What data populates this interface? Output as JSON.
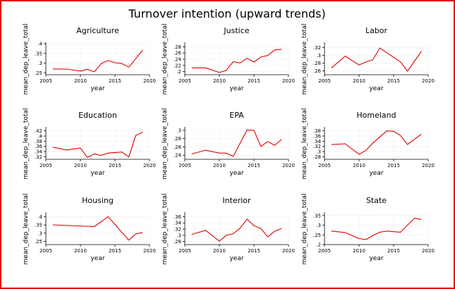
{
  "figure": {
    "title": "Turnover intention (upward trends)",
    "line_color": "#e00000",
    "frame_color": "#e00000"
  },
  "chart_data": [
    {
      "type": "line",
      "title": "Agriculture",
      "xlabel": "year",
      "ylabel": "mean_dep_leave_total",
      "xlim": [
        2005,
        2020
      ],
      "xticks": [
        2005,
        2010,
        2015,
        2020
      ],
      "ylim": [
        0.24,
        0.4
      ],
      "yticks": [
        0.25,
        0.3,
        0.35,
        0.4
      ],
      "ytick_labels": [
        ".25",
        ".3",
        ".35",
        ".4"
      ],
      "x": [
        2006,
        2008,
        2010,
        2011,
        2012,
        2013,
        2014,
        2015,
        2016,
        2017,
        2019
      ],
      "values": [
        0.27,
        0.269,
        0.259,
        0.268,
        0.255,
        0.297,
        0.313,
        0.302,
        0.298,
        0.279,
        0.367
      ]
    },
    {
      "type": "line",
      "title": "Justice",
      "xlabel": "year",
      "ylabel": "mean_dep_leave_total",
      "xlim": [
        2005,
        2020
      ],
      "xticks": [
        2005,
        2010,
        2015,
        2020
      ],
      "ylim": [
        0.19,
        0.29
      ],
      "yticks": [
        0.2,
        0.22,
        0.24,
        0.26,
        0.28
      ],
      "ytick_labels": [
        ".2",
        ".22",
        ".24",
        ".26",
        ".28"
      ],
      "x": [
        2006,
        2008,
        2010,
        2011,
        2012,
        2013,
        2014,
        2015,
        2016,
        2017,
        2018,
        2019
      ],
      "values": [
        0.212,
        0.212,
        0.197,
        0.204,
        0.232,
        0.228,
        0.243,
        0.231,
        0.247,
        0.252,
        0.27,
        0.272
      ]
    },
    {
      "type": "line",
      "title": "Labor",
      "xlabel": "year",
      "ylabel": "mean_dep_leave_total",
      "xlim": [
        2005,
        2020
      ],
      "xticks": [
        2005,
        2010,
        2015,
        2020
      ],
      "ylim": [
        0.25,
        0.33
      ],
      "yticks": [
        0.26,
        0.28,
        0.3,
        0.32
      ],
      "ytick_labels": [
        ".26",
        ".28",
        ".3",
        ".32"
      ],
      "x": [
        2006,
        2008,
        2010,
        2011,
        2012,
        2013,
        2016,
        2017,
        2019
      ],
      "values": [
        0.267,
        0.298,
        0.275,
        0.283,
        0.289,
        0.319,
        0.283,
        0.259,
        0.31
      ]
    },
    {
      "type": "line",
      "title": "Education",
      "xlabel": "year",
      "ylabel": "mean_dep_leave_total",
      "xlim": [
        2005,
        2020
      ],
      "xticks": [
        2005,
        2010,
        2015,
        2020
      ],
      "ylim": [
        0.31,
        0.43
      ],
      "yticks": [
        0.32,
        0.34,
        0.36,
        0.38,
        0.4,
        0.42
      ],
      "ytick_labels": [
        ".32",
        ".34",
        ".36",
        ".38",
        ".4",
        ".42"
      ],
      "x": [
        2006,
        2008,
        2010,
        2011,
        2012,
        2013,
        2014,
        2016,
        2017,
        2018,
        2019
      ],
      "values": [
        0.357,
        0.346,
        0.354,
        0.317,
        0.331,
        0.325,
        0.334,
        0.338,
        0.319,
        0.402,
        0.415
      ]
    },
    {
      "type": "line",
      "title": "EPA",
      "xlabel": "year",
      "ylabel": "mean_dep_leave_total",
      "xlim": [
        2005,
        2020
      ],
      "xticks": [
        2005,
        2010,
        2015,
        2020
      ],
      "ylim": [
        0.23,
        0.305
      ],
      "yticks": [
        0.24,
        0.26,
        0.28,
        0.3
      ],
      "ytick_labels": [
        ".24",
        ".26",
        ".28",
        ".3"
      ],
      "x": [
        2006,
        2008,
        2010,
        2011,
        2012,
        2014,
        2015,
        2016,
        2017,
        2018,
        2019
      ],
      "values": [
        0.243,
        0.252,
        0.245,
        0.245,
        0.237,
        0.301,
        0.3,
        0.261,
        0.273,
        0.264,
        0.278
      ]
    },
    {
      "type": "line",
      "title": "Homeland",
      "xlabel": "year",
      "ylabel": "mean_dep_leave_total",
      "xlim": [
        2005,
        2020
      ],
      "xticks": [
        2005,
        2010,
        2015,
        2020
      ],
      "ylim": [
        0.27,
        0.39
      ],
      "yticks": [
        0.28,
        0.3,
        0.32,
        0.34,
        0.36,
        0.38
      ],
      "ytick_labels": [
        ".28",
        ".3",
        ".32",
        ".34",
        ".36",
        ".38"
      ],
      "x": [
        2006,
        2008,
        2010,
        2011,
        2012,
        2014,
        2015,
        2016,
        2017,
        2019
      ],
      "values": [
        0.327,
        0.33,
        0.289,
        0.305,
        0.333,
        0.38,
        0.378,
        0.362,
        0.327,
        0.367
      ]
    },
    {
      "type": "line",
      "title": "Housing",
      "xlabel": "year",
      "ylabel": "mean_dep_leave_total",
      "xlim": [
        2005,
        2020
      ],
      "xticks": [
        2005,
        2010,
        2015,
        2020
      ],
      "ylim": [
        0.23,
        0.42
      ],
      "yticks": [
        0.25,
        0.3,
        0.35,
        0.4
      ],
      "ytick_labels": [
        ".25",
        ".3",
        ".35",
        ".4"
      ],
      "x": [
        2006,
        2012,
        2014,
        2017,
        2018,
        2019
      ],
      "values": [
        0.351,
        0.34,
        0.401,
        0.257,
        0.295,
        0.304
      ]
    },
    {
      "type": "line",
      "title": "Interior",
      "xlabel": "year",
      "ylabel": "mean_dep_leave_total",
      "xlim": [
        2005,
        2020
      ],
      "xticks": [
        2005,
        2010,
        2015,
        2020
      ],
      "ylim": [
        0.27,
        0.37
      ],
      "yticks": [
        0.28,
        0.3,
        0.32,
        0.34,
        0.36
      ],
      "ytick_labels": [
        ".28",
        ".3",
        ".32",
        ".34",
        ".36"
      ],
      "x": [
        2006,
        2008,
        2010,
        2011,
        2012,
        2013,
        2014,
        2015,
        2016,
        2017,
        2018,
        2019
      ],
      "values": [
        0.303,
        0.316,
        0.281,
        0.3,
        0.305,
        0.323,
        0.352,
        0.331,
        0.322,
        0.295,
        0.313,
        0.322
      ]
    },
    {
      "type": "line",
      "title": "State",
      "xlabel": "year",
      "ylabel": "mean_dep_leave_total",
      "xlim": [
        2005,
        2020
      ],
      "xticks": [
        2005,
        2010,
        2015,
        2020
      ],
      "ylim": [
        0.2,
        0.36
      ],
      "yticks": [
        0.2,
        0.25,
        0.3,
        0.35
      ],
      "ytick_labels": [
        ".2",
        ".25",
        ".3",
        ".35"
      ],
      "x": [
        2006,
        2008,
        2010,
        2011,
        2012,
        2013,
        2014,
        2016,
        2018,
        2019
      ],
      "values": [
        0.27,
        0.262,
        0.231,
        0.226,
        0.247,
        0.264,
        0.27,
        0.264,
        0.336,
        0.33
      ]
    }
  ]
}
